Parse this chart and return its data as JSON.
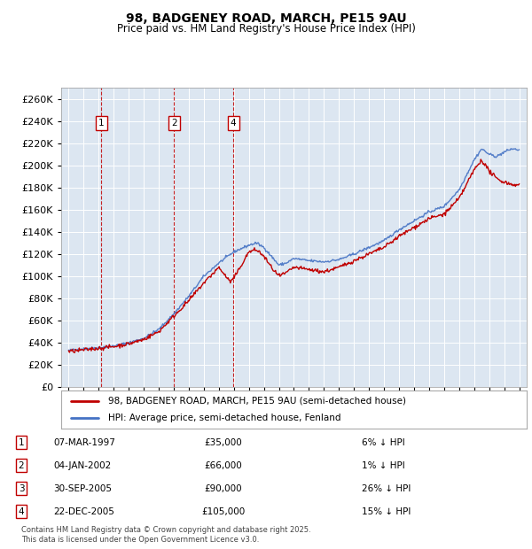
{
  "title": "98, BADGENEY ROAD, MARCH, PE15 9AU",
  "subtitle": "Price paid vs. HM Land Registry's House Price Index (HPI)",
  "ylim": [
    0,
    270000
  ],
  "yticks": [
    0,
    20000,
    40000,
    60000,
    80000,
    100000,
    120000,
    140000,
    160000,
    180000,
    200000,
    220000,
    240000,
    260000
  ],
  "background_color": "#ffffff",
  "chart_bg_color": "#dce6f1",
  "grid_color": "#ffffff",
  "hpi_color": "#4472c4",
  "price_color": "#c00000",
  "transactions": [
    {
      "label": "1",
      "date_num": 1997.18,
      "price": 35000,
      "hpi_pct": "6%",
      "date_str": "07-MAR-1997"
    },
    {
      "label": "2",
      "date_num": 2002.01,
      "price": 66000,
      "hpi_pct": "1%",
      "date_str": "04-JAN-2002"
    },
    {
      "label": "3",
      "date_num": 2005.75,
      "price": 90000,
      "hpi_pct": "26%",
      "date_str": "30-SEP-2005"
    },
    {
      "label": "4",
      "date_num": 2005.97,
      "price": 105000,
      "hpi_pct": "15%",
      "date_str": "22-DEC-2005"
    }
  ],
  "show_in_chart": [
    0,
    1,
    3
  ],
  "legend_line1": "98, BADGENEY ROAD, MARCH, PE15 9AU (semi-detached house)",
  "legend_line2": "HPI: Average price, semi-detached house, Fenland",
  "footer": "Contains HM Land Registry data © Crown copyright and database right 2025.\nThis data is licensed under the Open Government Licence v3.0.",
  "xmin": 1994.5,
  "xmax": 2025.5,
  "hpi_keypoints": [
    [
      1995.0,
      33000
    ],
    [
      1996.0,
      34500
    ],
    [
      1997.0,
      35500
    ],
    [
      1998.0,
      37000
    ],
    [
      1999.0,
      40000
    ],
    [
      2000.0,
      44000
    ],
    [
      2001.0,
      52000
    ],
    [
      2002.0,
      66000
    ],
    [
      2003.0,
      82000
    ],
    [
      2004.0,
      100000
    ],
    [
      2005.0,
      112000
    ],
    [
      2006.0,
      122000
    ],
    [
      2007.0,
      128000
    ],
    [
      2007.5,
      130000
    ],
    [
      2008.0,
      126000
    ],
    [
      2008.5,
      118000
    ],
    [
      2009.0,
      110000
    ],
    [
      2009.5,
      112000
    ],
    [
      2010.0,
      116000
    ],
    [
      2011.0,
      114000
    ],
    [
      2012.0,
      113000
    ],
    [
      2013.0,
      115000
    ],
    [
      2014.0,
      120000
    ],
    [
      2015.0,
      126000
    ],
    [
      2016.0,
      132000
    ],
    [
      2017.0,
      142000
    ],
    [
      2018.0,
      150000
    ],
    [
      2019.0,
      158000
    ],
    [
      2020.0,
      163000
    ],
    [
      2021.0,
      178000
    ],
    [
      2022.0,
      205000
    ],
    [
      2022.5,
      215000
    ],
    [
      2023.0,
      210000
    ],
    [
      2023.5,
      208000
    ],
    [
      2024.0,
      212000
    ],
    [
      2024.5,
      215000
    ],
    [
      2025.0,
      214000
    ]
  ],
  "price_keypoints": [
    [
      1995.0,
      32000
    ],
    [
      1996.0,
      33500
    ],
    [
      1997.0,
      35000
    ],
    [
      1998.0,
      36500
    ],
    [
      1999.0,
      39000
    ],
    [
      2000.0,
      43000
    ],
    [
      2001.0,
      50000
    ],
    [
      2002.0,
      64000
    ],
    [
      2003.0,
      78000
    ],
    [
      2004.0,
      94000
    ],
    [
      2005.0,
      108000
    ],
    [
      2005.75,
      95000
    ],
    [
      2006.0,
      98000
    ],
    [
      2006.5,
      110000
    ],
    [
      2007.0,
      122000
    ],
    [
      2007.5,
      124000
    ],
    [
      2008.0,
      118000
    ],
    [
      2008.5,
      108000
    ],
    [
      2009.0,
      100000
    ],
    [
      2009.5,
      103000
    ],
    [
      2010.0,
      108000
    ],
    [
      2011.0,
      106000
    ],
    [
      2012.0,
      104000
    ],
    [
      2013.0,
      108000
    ],
    [
      2014.0,
      114000
    ],
    [
      2015.0,
      120000
    ],
    [
      2016.0,
      126000
    ],
    [
      2017.0,
      136000
    ],
    [
      2018.0,
      144000
    ],
    [
      2019.0,
      152000
    ],
    [
      2020.0,
      156000
    ],
    [
      2021.0,
      170000
    ],
    [
      2022.0,
      196000
    ],
    [
      2022.5,
      205000
    ],
    [
      2023.0,
      195000
    ],
    [
      2023.5,
      188000
    ],
    [
      2024.0,
      185000
    ],
    [
      2024.5,
      183000
    ],
    [
      2025.0,
      182000
    ]
  ]
}
